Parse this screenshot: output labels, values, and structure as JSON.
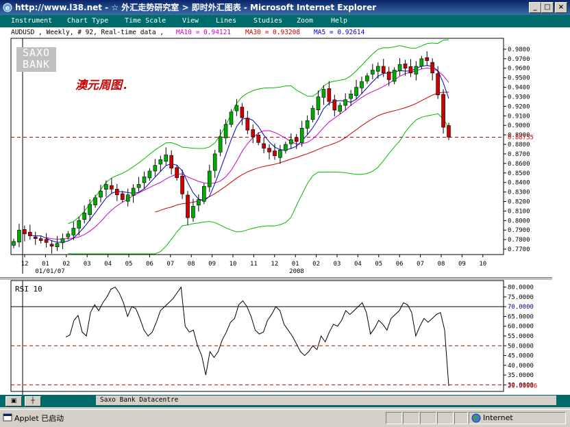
{
  "window": {
    "title": "http://www.l38.net - ☆ 外汇走势研究室 > 即时外汇图表 - Microsoft Internet Explorer",
    "min_glyph": "_",
    "max_glyph": "□",
    "close_glyph": "×"
  },
  "menu": [
    "Instrument",
    "Chart Type",
    "Time Scale",
    "View",
    "Lines",
    "Studies",
    "Zoom",
    "Help"
  ],
  "info": {
    "prefix": "AUDUSD , Weekly, # 92, Real-time data ,",
    "ma10": "MA10 = 0.94121",
    "ma30": "MA30 = 0.93208",
    "ma5": "MA5 = 0.92614",
    "ma10_color": "#cc00cc",
    "ma30_color": "#cc0000",
    "ma5_color": "#0000cc"
  },
  "logo": {
    "line1": "SAXO",
    "line2": "BANK"
  },
  "annotation": "澳元周图.",
  "price_chart": {
    "y_ticks": [
      "0.9800",
      "0.9700",
      "0.9600",
      "0.9500",
      "0.9400",
      "0.9300",
      "0.9200",
      "0.9100",
      "0.9000",
      "0.8900",
      "0.8800",
      "0.8700",
      "0.8600",
      "0.8500",
      "0.8400",
      "0.8300",
      "0.8200",
      "0.8100",
      "0.8000",
      "0.7900",
      "0.7800",
      "0.7700"
    ],
    "current_price": "0.88755",
    "x_ticks": [
      "12",
      "01",
      "02",
      "03",
      "04",
      "05",
      "06",
      "07",
      "08",
      "09",
      "10",
      "11",
      "12",
      "01",
      "02",
      "03",
      "04",
      "05",
      "06",
      "07",
      "08",
      "09",
      "10"
    ],
    "sub_labels": [
      "01/01/07",
      "2008"
    ]
  },
  "rsi": {
    "label": "RSI 10",
    "y_ticks": [
      "80.0000",
      "75.0000",
      "70.0000",
      "65.0000",
      "60.0000",
      "55.0000",
      "50.0000",
      "45.0000",
      "40.0000",
      "35.0000",
      "30.0000"
    ],
    "current": "29.53966"
  },
  "chart_data": [
    {
      "type": "candlestick",
      "title": "AUDUSD , Weekly",
      "ylim": [
        0.765,
        0.99
      ],
      "current_price": 0.88755,
      "ohlc": [],
      "series": [
        {
          "name": "MA10",
          "color": "#cc00cc"
        },
        {
          "name": "MA30",
          "color": "#cc0000"
        },
        {
          "name": "MA5",
          "color": "#0000cc"
        }
      ]
    },
    {
      "type": "line",
      "title": "RSI 10",
      "ylim": [
        27,
        83
      ],
      "levels": [
        30,
        50,
        70
      ],
      "current": 29.53966,
      "values": [
        54.5,
        55.5,
        63,
        65.5,
        57,
        55,
        67,
        71,
        68,
        72,
        75,
        79,
        80,
        77,
        72,
        65,
        70,
        69,
        64,
        58,
        55,
        57,
        62,
        68,
        70,
        72,
        74,
        77,
        80,
        60,
        57,
        58,
        50,
        45,
        35,
        47,
        44,
        47,
        53,
        57,
        62,
        64,
        71,
        73,
        70,
        65,
        58,
        56,
        57,
        63,
        66,
        70,
        68,
        61,
        58,
        55,
        51,
        47,
        45,
        47,
        50,
        48,
        55,
        52,
        57,
        61,
        60,
        63,
        68,
        66,
        68,
        70,
        72,
        67,
        56,
        59,
        63,
        61,
        58,
        64,
        66,
        68,
        72,
        71,
        67,
        55,
        60,
        64,
        62,
        64,
        66,
        67,
        58,
        29.5
      ]
    }
  ],
  "toolbar_bottom": {
    "tab1": "▣",
    "tab2": "┼",
    "caption": "Saxo Bank Datacentre"
  },
  "statusbar": {
    "left": "Applet 已启动",
    "zone": "Internet"
  }
}
